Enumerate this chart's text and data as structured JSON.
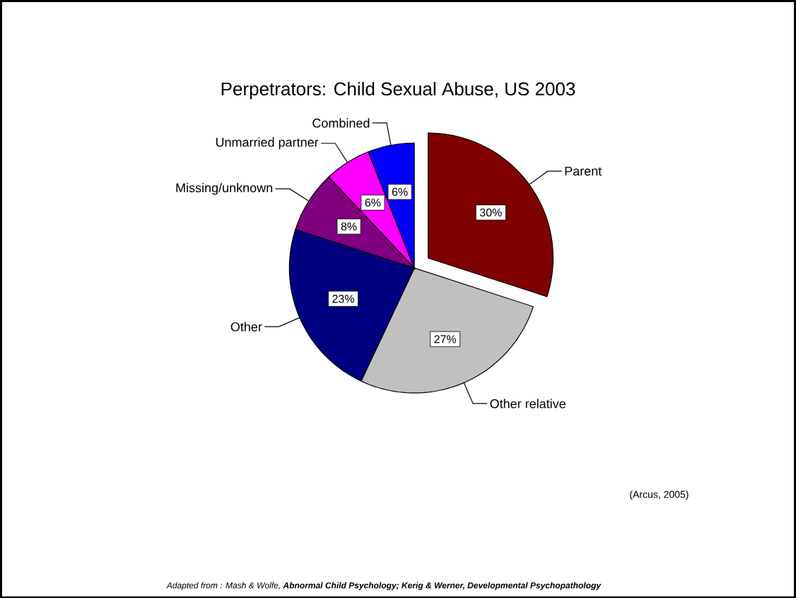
{
  "chart_data": {
    "type": "pie",
    "title": "Perpetrators: Child Sexual Abuse, US 2003",
    "categories": [
      "Parent",
      "Other relative",
      "Other",
      "Missing/unknown",
      "Unmarried partner",
      "Combined"
    ],
    "values": [
      30,
      27,
      23,
      8,
      6,
      6
    ],
    "colors": [
      "#800000",
      "#c0c0c0",
      "#000080",
      "#800080",
      "#ff00ff",
      "#0000ff"
    ],
    "value_labels": [
      "30%",
      "27%",
      "23%",
      "8%",
      "6%",
      "6%"
    ],
    "annotations": [
      "(Arcus, 2005)",
      "Adapted from : Mash & Wolfe, **Abnormal Child Psychology; Kerig & Werner, Developmental Psychopathology**"
    ]
  }
}
